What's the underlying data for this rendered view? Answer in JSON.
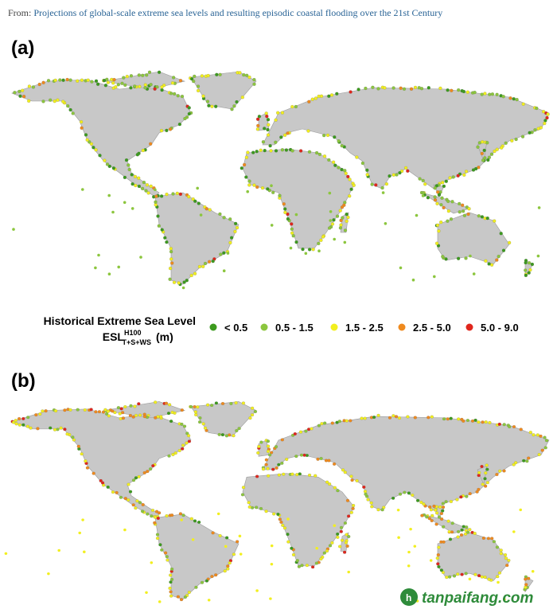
{
  "header": {
    "prefix": "From:",
    "link": "Projections of global-scale extreme sea levels and resulting episodic coastal flooding over the 21st Century"
  },
  "panels": [
    {
      "label": "(a)"
    },
    {
      "label": "(b)"
    }
  ],
  "legend": {
    "title": "Historical Extreme Sea Level",
    "symbol": "ESL",
    "superscript": "H100",
    "subscript": "T+S+WS",
    "unit": "(m)",
    "items": [
      {
        "label": "< 0.5",
        "color": "#3c9a1e"
      },
      {
        "label": "0.5 - 1.5",
        "color": "#8cc63e"
      },
      {
        "label": "1.5 - 2.5",
        "color": "#f2ef1f"
      },
      {
        "label": "2.5 - 5.0",
        "color": "#ef8a1e"
      },
      {
        "label": "5.0 - 9.0",
        "color": "#e0261c"
      }
    ]
  },
  "watermark": "tanpaifang.com"
}
